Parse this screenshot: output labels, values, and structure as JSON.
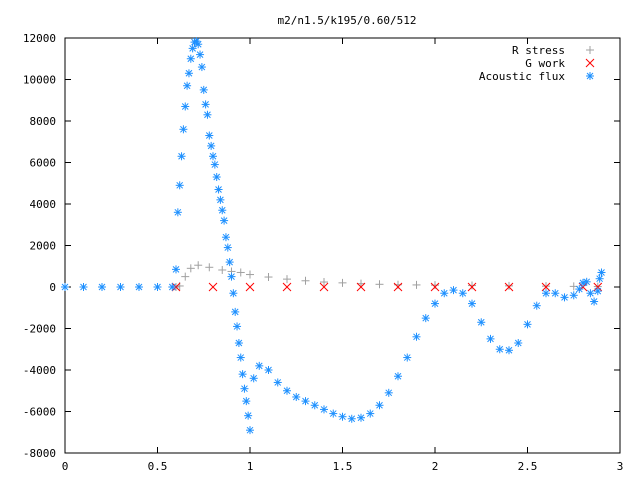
{
  "chart_data": {
    "type": "scatter",
    "title": "m2/n1.5/k195/0.60/512",
    "xlabel": "",
    "ylabel": "",
    "xlim": [
      0,
      3
    ],
    "ylim": [
      -8000,
      12000
    ],
    "x_ticks": [
      0,
      0.5,
      1,
      1.5,
      2,
      2.5,
      3
    ],
    "x_tick_labels": [
      "0",
      "0.5",
      "1",
      "1.5",
      "2",
      "2.5",
      "3"
    ],
    "y_ticks": [
      -8000,
      -6000,
      -4000,
      -2000,
      0,
      2000,
      4000,
      6000,
      8000,
      10000,
      12000
    ],
    "y_tick_labels": [
      "-8000",
      "-6000",
      "-4000",
      "-2000",
      "0",
      "2000",
      "4000",
      "6000",
      "8000",
      "10000",
      "12000"
    ],
    "legend_position": "top-right",
    "grid": false,
    "series": [
      {
        "name": "R stress",
        "marker": "plus",
        "color": "#a0a0a0",
        "points": [
          [
            0.0,
            0
          ],
          [
            0.2,
            0
          ],
          [
            0.4,
            0
          ],
          [
            0.6,
            0
          ],
          [
            0.62,
            50
          ],
          [
            0.65,
            500
          ],
          [
            0.68,
            900
          ],
          [
            0.72,
            1050
          ],
          [
            0.78,
            950
          ],
          [
            0.85,
            820
          ],
          [
            0.9,
            750
          ],
          [
            0.95,
            700
          ],
          [
            1.0,
            600
          ],
          [
            1.1,
            480
          ],
          [
            1.2,
            380
          ],
          [
            1.3,
            300
          ],
          [
            1.4,
            240
          ],
          [
            1.5,
            200
          ],
          [
            1.6,
            160
          ],
          [
            1.7,
            130
          ],
          [
            1.8,
            110
          ],
          [
            1.9,
            100
          ],
          [
            2.0,
            90
          ],
          [
            2.2,
            70
          ],
          [
            2.4,
            55
          ],
          [
            2.6,
            40
          ],
          [
            2.75,
            30
          ],
          [
            2.88,
            20
          ]
        ]
      },
      {
        "name": "G work",
        "marker": "cross",
        "color": "#ff0000",
        "points": [
          [
            0.6,
            0
          ],
          [
            0.8,
            0
          ],
          [
            1.0,
            0
          ],
          [
            1.2,
            0
          ],
          [
            1.4,
            0
          ],
          [
            1.6,
            0
          ],
          [
            1.8,
            0
          ],
          [
            2.0,
            0
          ],
          [
            2.2,
            0
          ],
          [
            2.4,
            0
          ],
          [
            2.6,
            0
          ],
          [
            2.8,
            0
          ],
          [
            2.88,
            0
          ]
        ]
      },
      {
        "name": "Acoustic flux",
        "marker": "star",
        "color": "#1e90ff",
        "points": [
          [
            0.0,
            0
          ],
          [
            0.1,
            0
          ],
          [
            0.2,
            0
          ],
          [
            0.3,
            0
          ],
          [
            0.4,
            0
          ],
          [
            0.5,
            0
          ],
          [
            0.58,
            0
          ],
          [
            0.6,
            850
          ],
          [
            0.61,
            3600
          ],
          [
            0.62,
            4900
          ],
          [
            0.63,
            6300
          ],
          [
            0.64,
            7600
          ],
          [
            0.65,
            8700
          ],
          [
            0.66,
            9700
          ],
          [
            0.67,
            10300
          ],
          [
            0.68,
            11000
          ],
          [
            0.69,
            11500
          ],
          [
            0.7,
            11800
          ],
          [
            0.71,
            11850
          ],
          [
            0.72,
            11700
          ],
          [
            0.73,
            11200
          ],
          [
            0.74,
            10600
          ],
          [
            0.75,
            9500
          ],
          [
            0.76,
            8800
          ],
          [
            0.77,
            8300
          ],
          [
            0.78,
            7300
          ],
          [
            0.79,
            6800
          ],
          [
            0.8,
            6300
          ],
          [
            0.81,
            5900
          ],
          [
            0.82,
            5300
          ],
          [
            0.83,
            4700
          ],
          [
            0.84,
            4200
          ],
          [
            0.85,
            3700
          ],
          [
            0.86,
            3200
          ],
          [
            0.87,
            2400
          ],
          [
            0.88,
            1900
          ],
          [
            0.89,
            1200
          ],
          [
            0.9,
            500
          ],
          [
            0.91,
            -300
          ],
          [
            0.92,
            -1200
          ],
          [
            0.93,
            -1900
          ],
          [
            0.94,
            -2700
          ],
          [
            0.95,
            -3400
          ],
          [
            0.96,
            -4200
          ],
          [
            0.97,
            -4900
          ],
          [
            0.98,
            -5500
          ],
          [
            0.99,
            -6200
          ],
          [
            1.0,
            -6900
          ],
          [
            1.02,
            -4400
          ],
          [
            1.05,
            -3800
          ],
          [
            1.1,
            -4000
          ],
          [
            1.15,
            -4600
          ],
          [
            1.2,
            -5000
          ],
          [
            1.25,
            -5300
          ],
          [
            1.3,
            -5500
          ],
          [
            1.35,
            -5700
          ],
          [
            1.4,
            -5900
          ],
          [
            1.45,
            -6100
          ],
          [
            1.5,
            -6250
          ],
          [
            1.55,
            -6350
          ],
          [
            1.6,
            -6300
          ],
          [
            1.65,
            -6100
          ],
          [
            1.7,
            -5700
          ],
          [
            1.75,
            -5100
          ],
          [
            1.8,
            -4300
          ],
          [
            1.85,
            -3400
          ],
          [
            1.9,
            -2400
          ],
          [
            1.95,
            -1500
          ],
          [
            2.0,
            -800
          ],
          [
            2.05,
            -300
          ],
          [
            2.1,
            -150
          ],
          [
            2.15,
            -300
          ],
          [
            2.2,
            -800
          ],
          [
            2.25,
            -1700
          ],
          [
            2.3,
            -2500
          ],
          [
            2.35,
            -3000
          ],
          [
            2.4,
            -3050
          ],
          [
            2.45,
            -2700
          ],
          [
            2.5,
            -1800
          ],
          [
            2.55,
            -900
          ],
          [
            2.6,
            -300
          ],
          [
            2.65,
            -300
          ],
          [
            2.7,
            -500
          ],
          [
            2.75,
            -400
          ],
          [
            2.78,
            -100
          ],
          [
            2.8,
            200
          ],
          [
            2.82,
            250
          ],
          [
            2.84,
            -300
          ],
          [
            2.86,
            -700
          ],
          [
            2.88,
            -200
          ],
          [
            2.89,
            400
          ],
          [
            2.9,
            700
          ]
        ]
      }
    ]
  }
}
